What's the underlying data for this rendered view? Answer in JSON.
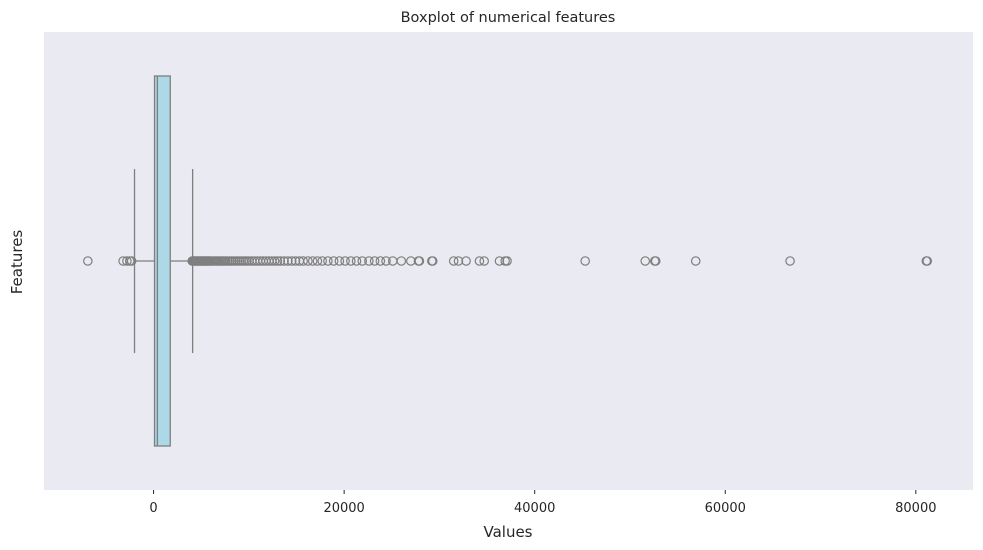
{
  "chart_data": {
    "type": "boxplot",
    "orientation": "horizontal",
    "title": "Boxplot of numerical features",
    "xlabel": "Values",
    "ylabel": "Features",
    "xlim": [
      -11500,
      86000
    ],
    "xticks": [
      0,
      20000,
      40000,
      60000,
      80000
    ],
    "grid": false,
    "colors": {
      "plot_background": "#eaeaf2",
      "box_fill": "#add8e6",
      "edge": "#7f7f7f"
    },
    "box": {
      "whisker_low": -2000,
      "q1": 100,
      "median": 400,
      "q3": 1750,
      "whisker_high": 4100
    },
    "outliers": [
      -6900,
      -3200,
      -2800,
      -2500,
      -2300,
      4050,
      4150,
      4250,
      4350,
      4450,
      4550,
      4650,
      4750,
      4850,
      4950,
      5050,
      5150,
      5250,
      5350,
      5450,
      5550,
      5650,
      5750,
      5850,
      5950,
      6100,
      6250,
      6400,
      6550,
      6700,
      6850,
      7000,
      7150,
      7300,
      7450,
      7600,
      7800,
      8000,
      8200,
      8400,
      8600,
      8800,
      9000,
      9200,
      9400,
      9600,
      9800,
      10000,
      10300,
      10600,
      10900,
      11200,
      11500,
      11800,
      12100,
      12400,
      12700,
      13000,
      13300,
      13700,
      14100,
      14500,
      14900,
      15300,
      15700,
      16200,
      16700,
      17200,
      17700,
      18300,
      18900,
      19500,
      20100,
      20700,
      21300,
      21900,
      22600,
      23200,
      23800,
      24400,
      25100,
      26000,
      27000,
      27800,
      27900,
      29200,
      29300,
      31500,
      32000,
      32800,
      34200,
      34700,
      36300,
      36900,
      37100,
      45300,
      51600,
      52600,
      52700,
      56900,
      66800,
      81100,
      81200
    ]
  }
}
